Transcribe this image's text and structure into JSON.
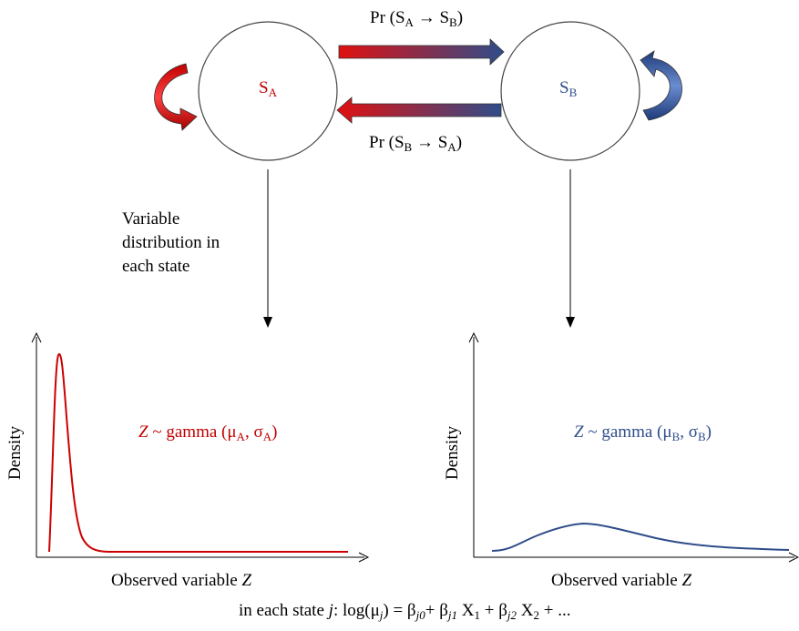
{
  "states": {
    "a_label": "S",
    "a_sub": "A",
    "b_label": "S",
    "b_sub": "B"
  },
  "transitions": {
    "ab": {
      "prefix": "Pr (S",
      "from_sub": "A",
      "arrow": " → S",
      "to_sub": "B",
      "suffix": ")"
    },
    "ba": {
      "prefix": "Pr (S",
      "from_sub": "B",
      "arrow": " → S",
      "to_sub": "A",
      "suffix": ")"
    }
  },
  "note": {
    "line1": "Variable",
    "line2": "distribution in",
    "line3": "each state"
  },
  "plots": {
    "left": {
      "ylabel": "Density",
      "xlabel_prefix": "Observed variable ",
      "xlabel_var": "Z",
      "formula": {
        "var": "Z",
        "text": " ~ gamma (μ",
        "sub1": "A",
        "mid": ", σ",
        "sub2": "A",
        "end": ")"
      }
    },
    "right": {
      "ylabel": "Density",
      "xlabel_prefix": "Observed variable ",
      "xlabel_var": "Z",
      "formula": {
        "var": "Z",
        "text": " ~ gamma (μ",
        "sub1": "B",
        "mid": ", σ",
        "sub2": "B",
        "end": ")"
      }
    }
  },
  "equation": {
    "p1": "in each state ",
    "j": "j",
    "p2": ": log(μ",
    "j_sub": "j",
    "p3": ") = β",
    "s1": "j0",
    "p4": "+ β",
    "s2": "j1",
    "p5": " X",
    "s3": "1",
    "p6": " + β",
    "s4": "j2",
    "p7": " X",
    "s5": "2",
    "p8": " + ..."
  },
  "colors": {
    "state_a": "#c00000",
    "state_b": "#2f4d8a"
  }
}
